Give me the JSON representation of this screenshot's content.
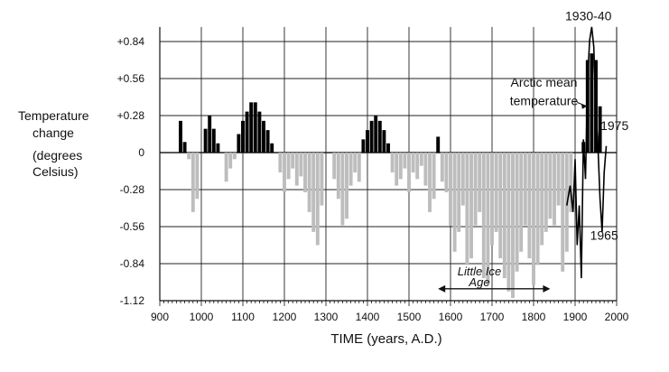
{
  "chart_data": {
    "type": "bar",
    "title": "",
    "xlabel": "TIME (years, A.D.)",
    "ylabel_lines": [
      "Temperature",
      "change",
      "(degrees",
      "Celsius)"
    ],
    "x_ticks": [
      "900",
      "1000",
      "1100",
      "1200",
      "1300",
      "1400",
      "1500",
      "1600",
      "1700",
      "1800",
      "1900",
      "2000"
    ],
    "y_ticks": [
      "+0.84",
      "+0.56",
      "+0.28",
      "0",
      "-0.28",
      "-0.56",
      "-0.84",
      "-1.12"
    ],
    "xlim": [
      900,
      2000
    ],
    "ylim": [
      -1.12,
      0.95
    ],
    "grid": true,
    "colors": {
      "warm": "#000000",
      "cool": "#bdbdbd",
      "line": "#000000"
    },
    "series": [
      {
        "values_kind": "decadal_bars",
        "bars": [
          {
            "x": 950,
            "y": 0.24
          },
          {
            "x": 960,
            "y": 0.08
          },
          {
            "x": 970,
            "y": -0.05
          },
          {
            "x": 980,
            "y": -0.45
          },
          {
            "x": 990,
            "y": -0.35
          },
          {
            "x": 1010,
            "y": 0.18
          },
          {
            "x": 1020,
            "y": 0.28
          },
          {
            "x": 1030,
            "y": 0.18
          },
          {
            "x": 1040,
            "y": 0.07
          },
          {
            "x": 1060,
            "y": -0.22
          },
          {
            "x": 1070,
            "y": -0.12
          },
          {
            "x": 1080,
            "y": -0.05
          },
          {
            "x": 1090,
            "y": 0.14
          },
          {
            "x": 1100,
            "y": 0.24
          },
          {
            "x": 1110,
            "y": 0.31
          },
          {
            "x": 1120,
            "y": 0.38
          },
          {
            "x": 1130,
            "y": 0.38
          },
          {
            "x": 1140,
            "y": 0.31
          },
          {
            "x": 1150,
            "y": 0.24
          },
          {
            "x": 1160,
            "y": 0.17
          },
          {
            "x": 1170,
            "y": 0.07
          },
          {
            "x": 1190,
            "y": -0.15
          },
          {
            "x": 1200,
            "y": -0.3
          },
          {
            "x": 1210,
            "y": -0.2
          },
          {
            "x": 1220,
            "y": -0.12
          },
          {
            "x": 1230,
            "y": -0.25
          },
          {
            "x": 1240,
            "y": -0.18
          },
          {
            "x": 1250,
            "y": -0.3
          },
          {
            "x": 1260,
            "y": -0.45
          },
          {
            "x": 1270,
            "y": -0.6
          },
          {
            "x": 1280,
            "y": -0.7
          },
          {
            "x": 1290,
            "y": -0.4
          },
          {
            "x": 1320,
            "y": -0.2
          },
          {
            "x": 1330,
            "y": -0.35
          },
          {
            "x": 1340,
            "y": -0.55
          },
          {
            "x": 1350,
            "y": -0.5
          },
          {
            "x": 1360,
            "y": -0.25
          },
          {
            "x": 1370,
            "y": -0.15
          },
          {
            "x": 1380,
            "y": -0.22
          },
          {
            "x": 1390,
            "y": 0.1
          },
          {
            "x": 1400,
            "y": 0.17
          },
          {
            "x": 1410,
            "y": 0.24
          },
          {
            "x": 1420,
            "y": 0.28
          },
          {
            "x": 1430,
            "y": 0.24
          },
          {
            "x": 1440,
            "y": 0.17
          },
          {
            "x": 1450,
            "y": 0.07
          },
          {
            "x": 1460,
            "y": -0.15
          },
          {
            "x": 1470,
            "y": -0.25
          },
          {
            "x": 1480,
            "y": -0.2
          },
          {
            "x": 1490,
            "y": -0.12
          },
          {
            "x": 1500,
            "y": -0.3
          },
          {
            "x": 1510,
            "y": -0.15
          },
          {
            "x": 1520,
            "y": -0.2
          },
          {
            "x": 1530,
            "y": -0.1
          },
          {
            "x": 1540,
            "y": -0.25
          },
          {
            "x": 1550,
            "y": -0.45
          },
          {
            "x": 1560,
            "y": -0.35
          },
          {
            "x": 1570,
            "y": 0.12
          },
          {
            "x": 1580,
            "y": -0.22
          },
          {
            "x": 1590,
            "y": -0.3
          },
          {
            "x": 1600,
            "y": -0.55
          },
          {
            "x": 1610,
            "y": -0.75
          },
          {
            "x": 1620,
            "y": -0.6
          },
          {
            "x": 1630,
            "y": -0.4
          },
          {
            "x": 1640,
            "y": -0.85
          },
          {
            "x": 1650,
            "y": -0.8
          },
          {
            "x": 1660,
            "y": -0.55
          },
          {
            "x": 1670,
            "y": -0.45
          },
          {
            "x": 1680,
            "y": -0.95
          },
          {
            "x": 1690,
            "y": -1.0
          },
          {
            "x": 1700,
            "y": -0.7
          },
          {
            "x": 1710,
            "y": -0.6
          },
          {
            "x": 1720,
            "y": -0.8
          },
          {
            "x": 1730,
            "y": -0.95
          },
          {
            "x": 1740,
            "y": -1.05
          },
          {
            "x": 1750,
            "y": -1.1
          },
          {
            "x": 1760,
            "y": -0.9
          },
          {
            "x": 1770,
            "y": -0.75
          },
          {
            "x": 1780,
            "y": -0.55
          },
          {
            "x": 1790,
            "y": -0.8
          },
          {
            "x": 1800,
            "y": -1.0
          },
          {
            "x": 1810,
            "y": -0.85
          },
          {
            "x": 1820,
            "y": -0.7
          },
          {
            "x": 1830,
            "y": -0.6
          },
          {
            "x": 1840,
            "y": -0.5
          },
          {
            "x": 1850,
            "y": -0.55
          },
          {
            "x": 1860,
            "y": -0.4
          },
          {
            "x": 1870,
            "y": -0.9
          },
          {
            "x": 1880,
            "y": -0.75
          },
          {
            "x": 1890,
            "y": -0.45
          },
          {
            "x": 1920,
            "y": 0.08
          },
          {
            "x": 1930,
            "y": 0.7
          },
          {
            "x": 1940,
            "y": 0.75
          },
          {
            "x": 1950,
            "y": 0.7
          },
          {
            "x": 1960,
            "y": 0.35
          }
        ]
      },
      {
        "values_kind": "line",
        "points": [
          {
            "x": 1880,
            "y": -0.4
          },
          {
            "x": 1888,
            "y": -0.25
          },
          {
            "x": 1895,
            "y": -0.45
          },
          {
            "x": 1900,
            "y": -0.05
          },
          {
            "x": 1905,
            "y": -0.7
          },
          {
            "x": 1910,
            "y": -0.4
          },
          {
            "x": 1915,
            "y": -0.95
          },
          {
            "x": 1920,
            "y": 0.1
          },
          {
            "x": 1925,
            "y": -0.2
          },
          {
            "x": 1930,
            "y": 0.55
          },
          {
            "x": 1935,
            "y": 0.85
          },
          {
            "x": 1940,
            "y": 0.95
          },
          {
            "x": 1945,
            "y": 0.8
          },
          {
            "x": 1950,
            "y": 0.3
          },
          {
            "x": 1955,
            "y": 0.05
          },
          {
            "x": 1960,
            "y": -0.35
          },
          {
            "x": 1965,
            "y": -0.6
          },
          {
            "x": 1970,
            "y": -0.15
          },
          {
            "x": 1975,
            "y": 0.05
          }
        ]
      }
    ],
    "annotations": [
      {
        "text": "1930-40",
        "x": 1932,
        "y": 1.0
      },
      {
        "text": "Arctic mean",
        "x": 1825,
        "y": 0.5
      },
      {
        "text": "temperature",
        "x": 1825,
        "y": 0.36
      },
      {
        "text": "1975",
        "x": 1995,
        "y": 0.17
      },
      {
        "text": "1965",
        "x": 1970,
        "y": -0.66
      }
    ],
    "little_ice_age": {
      "label_lines": [
        "Little Ice",
        "Age"
      ],
      "start": 1570,
      "end": 1840
    }
  }
}
